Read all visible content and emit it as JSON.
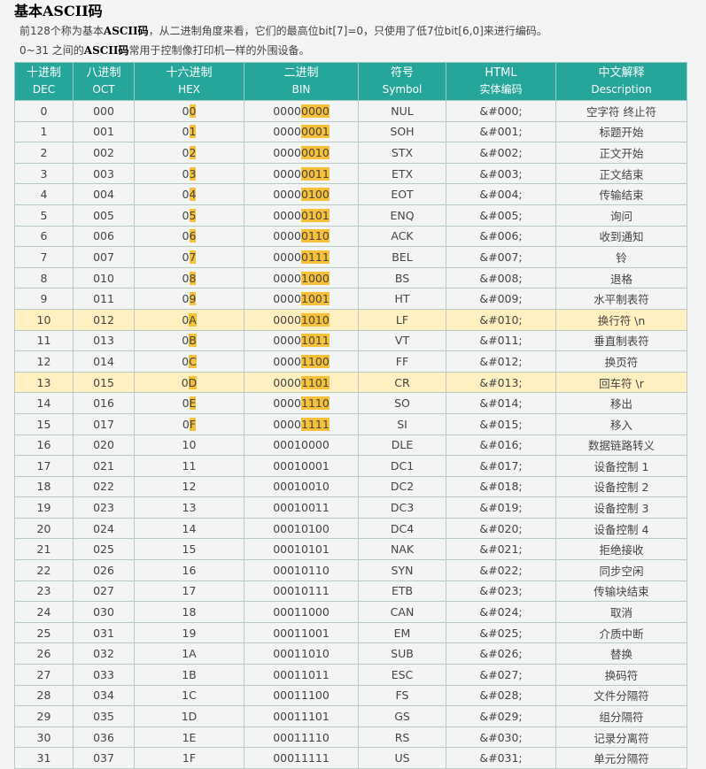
{
  "heading": "基本ASCII码",
  "desc1": {
    "p1": "前128个称为基本",
    "b1": "ASCII码",
    "p2": "，从二进制角度来看，它们的最高位bit[7]=0，只使用了低7位bit[6,0]来进行编码。"
  },
  "desc2": {
    "p1": "0~31 之间的",
    "b1": "ASCII码",
    "p2": "常用于控制像打印机一样的外围设备。"
  },
  "columns": [
    {
      "zh": "十进制",
      "en": "DEC"
    },
    {
      "zh": "八进制",
      "en": "OCT"
    },
    {
      "zh": "十六进制",
      "en": "HEX"
    },
    {
      "zh": "二进制",
      "en": "BIN"
    },
    {
      "zh": "符号",
      "en": "Symbol"
    },
    {
      "zh": "HTML",
      "en": "实体编码"
    },
    {
      "zh": "中文解释",
      "en": "Description"
    }
  ],
  "highlight_color": "#f6c138",
  "rows": [
    {
      "dec": "0",
      "oct": "000",
      "hex": "00",
      "bin": "00000000",
      "sym": "NUL",
      "html": "&#000;",
      "zh": "空字符 终止符",
      "hl": false
    },
    {
      "dec": "1",
      "oct": "001",
      "hex": "01",
      "bin": "00000001",
      "sym": "SOH",
      "html": "&#001;",
      "zh": "标题开始",
      "hl": false
    },
    {
      "dec": "2",
      "oct": "002",
      "hex": "02",
      "bin": "00000010",
      "sym": "STX",
      "html": "&#002;",
      "zh": "正文开始",
      "hl": false
    },
    {
      "dec": "3",
      "oct": "003",
      "hex": "03",
      "bin": "00000011",
      "sym": "ETX",
      "html": "&#003;",
      "zh": "正文结束",
      "hl": false
    },
    {
      "dec": "4",
      "oct": "004",
      "hex": "04",
      "bin": "00000100",
      "sym": "EOT",
      "html": "&#004;",
      "zh": "传输结束",
      "hl": false
    },
    {
      "dec": "5",
      "oct": "005",
      "hex": "05",
      "bin": "00000101",
      "sym": "ENQ",
      "html": "&#005;",
      "zh": "询问",
      "hl": false
    },
    {
      "dec": "6",
      "oct": "006",
      "hex": "06",
      "bin": "00000110",
      "sym": "ACK",
      "html": "&#006;",
      "zh": "收到通知",
      "hl": false
    },
    {
      "dec": "7",
      "oct": "007",
      "hex": "07",
      "bin": "00000111",
      "sym": "BEL",
      "html": "&#007;",
      "zh": "铃",
      "hl": false
    },
    {
      "dec": "8",
      "oct": "010",
      "hex": "08",
      "bin": "00001000",
      "sym": "BS",
      "html": "&#008;",
      "zh": "退格",
      "hl": false
    },
    {
      "dec": "9",
      "oct": "011",
      "hex": "09",
      "bin": "00001001",
      "sym": "HT",
      "html": "&#009;",
      "zh": "水平制表符",
      "hl": false
    },
    {
      "dec": "10",
      "oct": "012",
      "hex": "0A",
      "bin": "00001010",
      "sym": "LF",
      "html": "&#010;",
      "zh": "换行符 \\n",
      "hl": true
    },
    {
      "dec": "11",
      "oct": "013",
      "hex": "0B",
      "bin": "00001011",
      "sym": "VT",
      "html": "&#011;",
      "zh": "垂直制表符",
      "hl": false
    },
    {
      "dec": "12",
      "oct": "014",
      "hex": "0C",
      "bin": "00001100",
      "sym": "FF",
      "html": "&#012;",
      "zh": "换页符",
      "hl": false
    },
    {
      "dec": "13",
      "oct": "015",
      "hex": "0D",
      "bin": "00001101",
      "sym": "CR",
      "html": "&#013;",
      "zh": "回车符 \\r",
      "hl": true
    },
    {
      "dec": "14",
      "oct": "016",
      "hex": "0E",
      "bin": "00001110",
      "sym": "SO",
      "html": "&#014;",
      "zh": "移出",
      "hl": false
    },
    {
      "dec": "15",
      "oct": "017",
      "hex": "0F",
      "bin": "00001111",
      "sym": "SI",
      "html": "&#015;",
      "zh": "移入",
      "hl": false
    },
    {
      "dec": "16",
      "oct": "020",
      "hex": "10",
      "bin": "00010000",
      "sym": "DLE",
      "html": "&#016;",
      "zh": "数据链路转义",
      "hl": false
    },
    {
      "dec": "17",
      "oct": "021",
      "hex": "11",
      "bin": "00010001",
      "sym": "DC1",
      "html": "&#017;",
      "zh": "设备控制 1",
      "hl": false
    },
    {
      "dec": "18",
      "oct": "022",
      "hex": "12",
      "bin": "00010010",
      "sym": "DC2",
      "html": "&#018;",
      "zh": "设备控制 2",
      "hl": false
    },
    {
      "dec": "19",
      "oct": "023",
      "hex": "13",
      "bin": "00010011",
      "sym": "DC3",
      "html": "&#019;",
      "zh": "设备控制 3",
      "hl": false
    },
    {
      "dec": "20",
      "oct": "024",
      "hex": "14",
      "bin": "00010100",
      "sym": "DC4",
      "html": "&#020;",
      "zh": "设备控制 4",
      "hl": false
    },
    {
      "dec": "21",
      "oct": "025",
      "hex": "15",
      "bin": "00010101",
      "sym": "NAK",
      "html": "&#021;",
      "zh": "拒绝接收",
      "hl": false
    },
    {
      "dec": "22",
      "oct": "026",
      "hex": "16",
      "bin": "00010110",
      "sym": "SYN",
      "html": "&#022;",
      "zh": "同步空闲",
      "hl": false
    },
    {
      "dec": "23",
      "oct": "027",
      "hex": "17",
      "bin": "00010111",
      "sym": "ETB",
      "html": "&#023;",
      "zh": "传输块结束",
      "hl": false
    },
    {
      "dec": "24",
      "oct": "030",
      "hex": "18",
      "bin": "00011000",
      "sym": "CAN",
      "html": "&#024;",
      "zh": "取消",
      "hl": false
    },
    {
      "dec": "25",
      "oct": "031",
      "hex": "19",
      "bin": "00011001",
      "sym": "EM",
      "html": "&#025;",
      "zh": "介质中断",
      "hl": false
    },
    {
      "dec": "26",
      "oct": "032",
      "hex": "1A",
      "bin": "00011010",
      "sym": "SUB",
      "html": "&#026;",
      "zh": "替换",
      "hl": false
    },
    {
      "dec": "27",
      "oct": "033",
      "hex": "1B",
      "bin": "00011011",
      "sym": "ESC",
      "html": "&#027;",
      "zh": "换码符",
      "hl": false
    },
    {
      "dec": "28",
      "oct": "034",
      "hex": "1C",
      "bin": "00011100",
      "sym": "FS",
      "html": "&#028;",
      "zh": "文件分隔符",
      "hl": false
    },
    {
      "dec": "29",
      "oct": "035",
      "hex": "1D",
      "bin": "00011101",
      "sym": "GS",
      "html": "&#029;",
      "zh": "组分隔符",
      "hl": false
    },
    {
      "dec": "30",
      "oct": "036",
      "hex": "1E",
      "bin": "00011110",
      "sym": "RS",
      "html": "&#030;",
      "zh": "记录分离符",
      "hl": false
    },
    {
      "dec": "31",
      "oct": "037",
      "hex": "1F",
      "bin": "00011111",
      "sym": "US",
      "html": "&#031;",
      "zh": "单元分隔符",
      "hl": false
    }
  ]
}
